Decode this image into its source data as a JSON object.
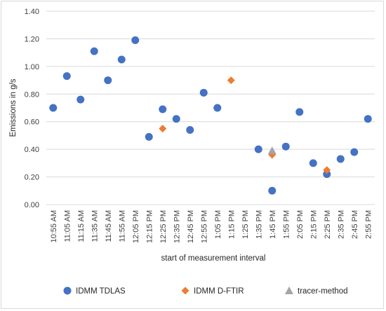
{
  "chart_data": {
    "type": "scatter",
    "title": "",
    "xlabel": "start of measurement interval",
    "ylabel": "Emissions in g/s",
    "ylim": [
      0,
      1.4
    ],
    "y_ticks": [
      "0.00",
      "0.20",
      "0.40",
      "0.60",
      "0.80",
      "1.00",
      "1.20",
      "1.40"
    ],
    "categories": [
      "10:55 AM",
      "11:05 AM",
      "11:15 AM",
      "11:35 AM",
      "11:45 AM",
      "11:55 AM",
      "12:05 PM",
      "12:15 PM",
      "12:25 PM",
      "12:35 PM",
      "12:45 PM",
      "12:55 PM",
      "1:05 PM",
      "1:15 PM",
      "1:25 PM",
      "1:35 PM",
      "1:45 PM",
      "1:55 PM",
      "2:05 PM",
      "2:15 PM",
      "2:25 PM",
      "2:35 PM",
      "2:45 PM",
      "2:55 PM"
    ],
    "grid": "horizontal",
    "legend_position": "bottom",
    "series": [
      {
        "name": "IDMM TDLAS",
        "marker": "circle",
        "color": "#4472c4",
        "points": [
          {
            "x": "10:55 AM",
            "y": 0.7
          },
          {
            "x": "11:05 AM",
            "y": 0.93
          },
          {
            "x": "11:15 AM",
            "y": 0.76
          },
          {
            "x": "11:35 AM",
            "y": 1.11
          },
          {
            "x": "11:45 AM",
            "y": 0.9
          },
          {
            "x": "11:55 AM",
            "y": 1.05
          },
          {
            "x": "12:05 PM",
            "y": 1.19
          },
          {
            "x": "12:15 PM",
            "y": 0.49
          },
          {
            "x": "12:25 PM",
            "y": 0.69
          },
          {
            "x": "12:35 PM",
            "y": 0.62
          },
          {
            "x": "12:45 PM",
            "y": 0.54
          },
          {
            "x": "12:55 PM",
            "y": 0.81
          },
          {
            "x": "1:05 PM",
            "y": 0.7
          },
          {
            "x": "1:35 PM",
            "y": 0.4
          },
          {
            "x": "1:45 PM",
            "y": 0.1
          },
          {
            "x": "1:55 PM",
            "y": 0.42
          },
          {
            "x": "2:05 PM",
            "y": 0.67
          },
          {
            "x": "2:15 PM",
            "y": 0.3
          },
          {
            "x": "2:25 PM",
            "y": 0.22
          },
          {
            "x": "2:35 PM",
            "y": 0.33
          },
          {
            "x": "2:45 PM",
            "y": 0.38
          },
          {
            "x": "2:55 PM",
            "y": 0.62
          }
        ]
      },
      {
        "name": "IDMM D-FTIR",
        "marker": "diamond",
        "color": "#ed7d31",
        "points": [
          {
            "x": "12:25 PM",
            "y": 0.55
          },
          {
            "x": "1:15 PM",
            "y": 0.9
          },
          {
            "x": "1:45 PM",
            "y": 0.36
          },
          {
            "x": "2:25 PM",
            "y": 0.25
          }
        ]
      },
      {
        "name": "tracer-method",
        "marker": "triangle",
        "color": "#a5a5a5",
        "points": [
          {
            "x": "1:45 PM",
            "y": 0.39
          }
        ]
      }
    ]
  }
}
